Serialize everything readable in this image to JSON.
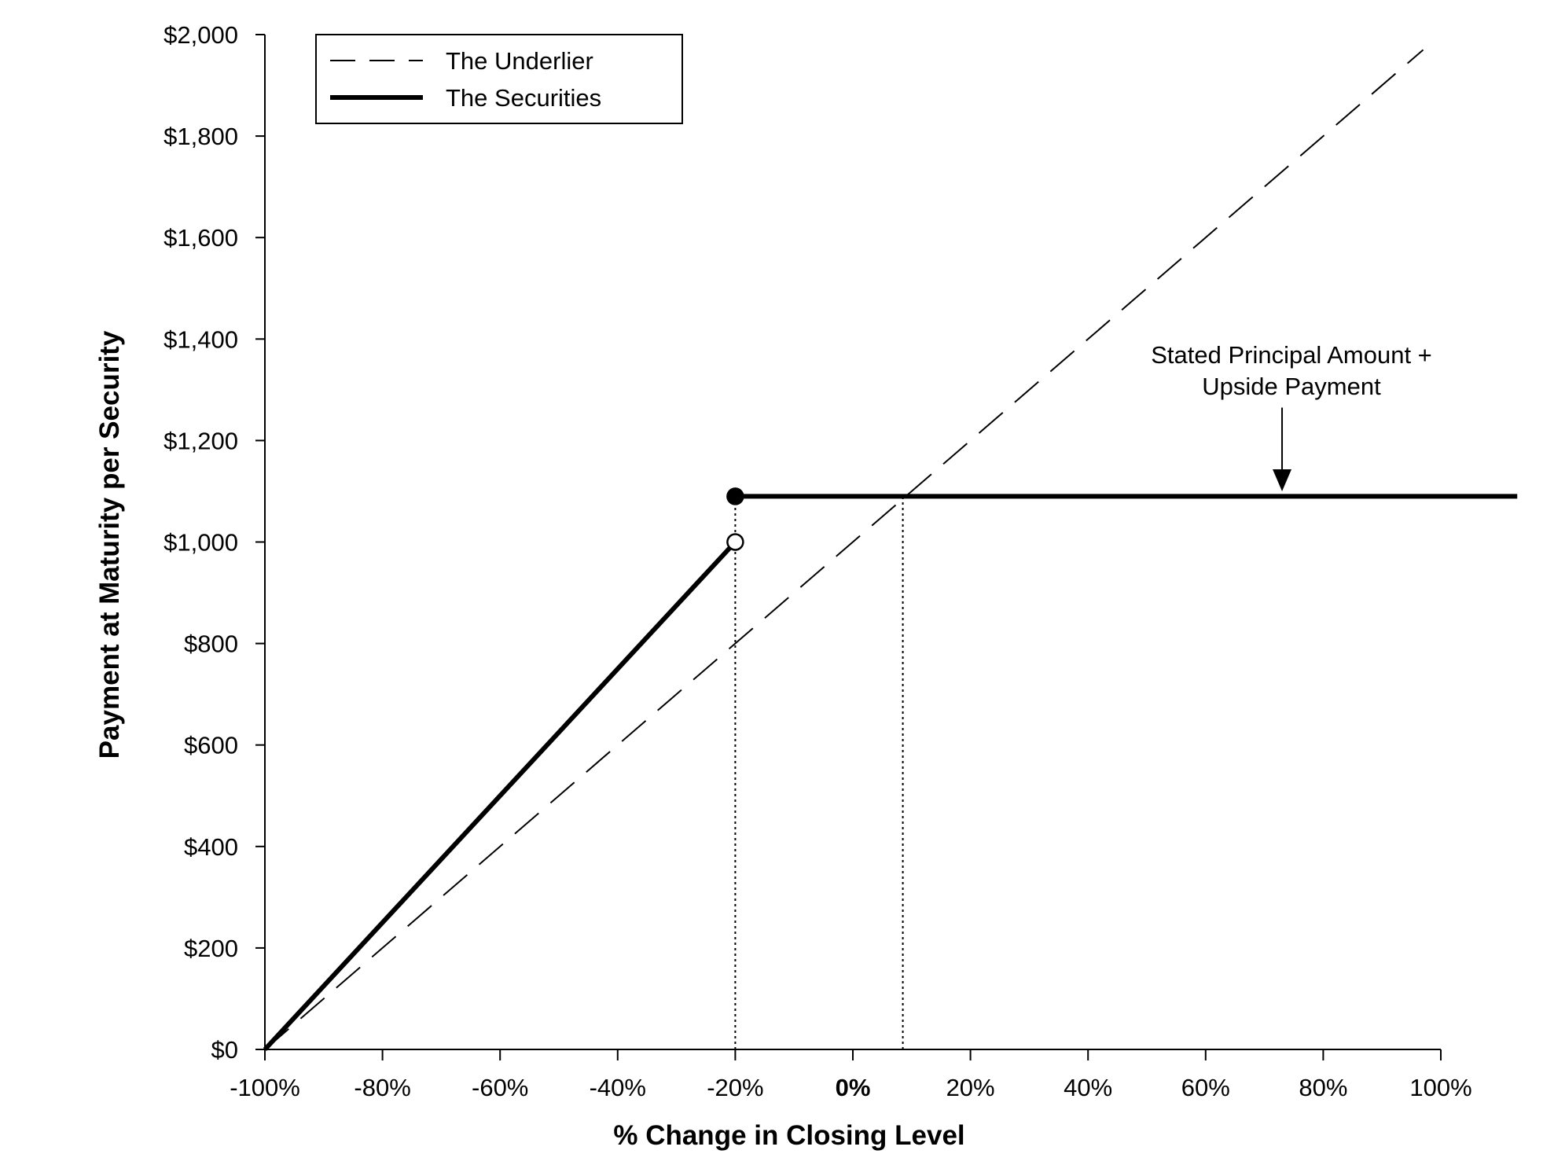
{
  "chart_data": {
    "type": "line",
    "title": "",
    "xlabel": "% Change in Closing Level",
    "ylabel": "Payment at Maturity per Security",
    "xlim": [
      -100,
      100
    ],
    "ylim": [
      0,
      2000
    ],
    "x_ticks": [
      {
        "value": -100,
        "label": "-100%",
        "bold": false
      },
      {
        "value": -80,
        "label": "-80%",
        "bold": false
      },
      {
        "value": -60,
        "label": "-60%",
        "bold": false
      },
      {
        "value": -40,
        "label": "-40%",
        "bold": false
      },
      {
        "value": -20,
        "label": "-20%",
        "bold": false
      },
      {
        "value": 0,
        "label": "0%",
        "bold": true
      },
      {
        "value": 20,
        "label": "20%",
        "bold": false
      },
      {
        "value": 40,
        "label": "40%",
        "bold": false
      },
      {
        "value": 60,
        "label": "60%",
        "bold": false
      },
      {
        "value": 80,
        "label": "80%",
        "bold": false
      },
      {
        "value": 100,
        "label": "100%",
        "bold": false
      }
    ],
    "y_ticks": [
      {
        "value": 0,
        "label": "$0"
      },
      {
        "value": 200,
        "label": "$200"
      },
      {
        "value": 400,
        "label": "$400"
      },
      {
        "value": 600,
        "label": "$600"
      },
      {
        "value": 800,
        "label": "$800"
      },
      {
        "value": 1000,
        "label": "$1,000"
      },
      {
        "value": 1200,
        "label": "$1,200"
      },
      {
        "value": 1400,
        "label": "$1,400"
      },
      {
        "value": 1600,
        "label": "$1,600"
      },
      {
        "value": 1800,
        "label": "$1,800"
      },
      {
        "value": 2000,
        "label": "$2,000"
      }
    ],
    "series": [
      {
        "name": "The Underlier",
        "style": "dashed",
        "color": "#000000",
        "segments": [
          [
            {
              "x": -100,
              "y": 0
            },
            {
              "x": 97,
              "y": 1970
            }
          ]
        ]
      },
      {
        "name": "The Securities",
        "style": "solid-thick",
        "color": "#000000",
        "segments": [
          [
            {
              "x": -100,
              "y": 0
            },
            {
              "x": -20,
              "y": 1000
            }
          ],
          [
            {
              "x": -20,
              "y": 1090
            },
            {
              "x": 113,
              "y": 1090
            }
          ]
        ]
      }
    ],
    "markers": [
      {
        "x": -20,
        "y": 1090,
        "fill": "filled"
      },
      {
        "x": -20,
        "y": 1000,
        "fill": "open"
      }
    ],
    "reference_lines": [
      {
        "x": -20,
        "y_from": 0,
        "y_to": 1090,
        "style": "dotted"
      },
      {
        "x": 8.5,
        "y_from": 0,
        "y_to": 1090,
        "style": "dotted"
      }
    ],
    "annotation": {
      "lines": [
        "Stated Principal Amount +",
        "Upside Payment"
      ],
      "arrow_x": 73,
      "arrow_y_from": 1265,
      "arrow_y_to": 1100
    },
    "legend": {
      "placement": "top-left",
      "entries": [
        "The Underlier",
        "The Securities"
      ]
    },
    "grid": false
  }
}
